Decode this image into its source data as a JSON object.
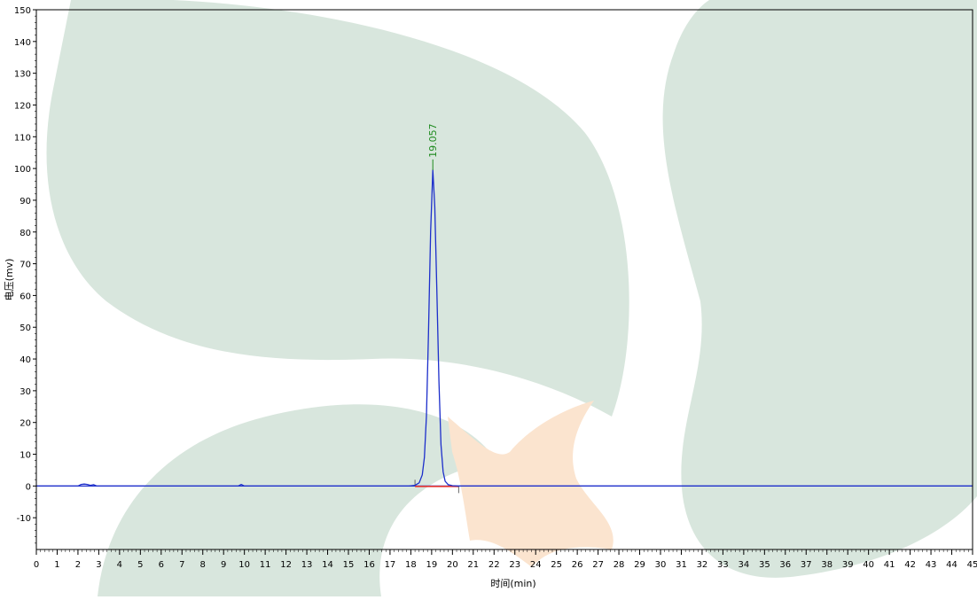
{
  "chart_data": {
    "type": "line",
    "title": "",
    "xlabel": "时间(min)",
    "ylabel": "电压(mv)",
    "xlim": [
      0,
      45
    ],
    "ylim": [
      -20,
      150
    ],
    "x_ticks": [
      0,
      1,
      2,
      3,
      4,
      5,
      6,
      7,
      8,
      9,
      10,
      11,
      12,
      13,
      14,
      15,
      16,
      17,
      18,
      19,
      20,
      21,
      22,
      23,
      24,
      25,
      26,
      27,
      28,
      29,
      30,
      31,
      32,
      33,
      34,
      35,
      36,
      37,
      38,
      39,
      40,
      41,
      42,
      43,
      44,
      45
    ],
    "y_ticks": [
      -10,
      0,
      10,
      20,
      30,
      40,
      50,
      60,
      70,
      80,
      90,
      100,
      110,
      120,
      130,
      140,
      150
    ],
    "grid": false,
    "zero_line": true,
    "colors": {
      "trace": "#1c2ecb",
      "baseline": "#e03030",
      "peak_label": "#1e8a1e",
      "axis": "#000000",
      "watermark_green": "#d8e6dd",
      "watermark_orange": "#fbe4cf"
    },
    "series": [
      {
        "x": [
          0,
          2.0,
          2.15,
          2.3,
          2.45,
          2.6,
          2.75,
          2.9,
          9.7,
          9.85,
          10.0,
          17.9,
          18.2,
          18.4,
          18.55,
          18.65,
          18.75,
          18.85,
          18.95,
          19.057,
          19.15,
          19.25,
          19.35,
          19.45,
          19.55,
          19.65,
          19.8,
          20.0,
          20.3,
          45
        ],
        "y": [
          0,
          0,
          0.5,
          0.6,
          0.5,
          0.2,
          0.4,
          0,
          0,
          0.5,
          0,
          0,
          0.2,
          1.0,
          3.5,
          9,
          22,
          48,
          80,
          99.5,
          88,
          62,
          33,
          13,
          4.5,
          1.5,
          0.4,
          0.1,
          0,
          0
        ]
      }
    ],
    "peaks": [
      {
        "retention_time": 19.057,
        "label": "19.057",
        "start": 18.2,
        "end": 20.3
      }
    ]
  }
}
